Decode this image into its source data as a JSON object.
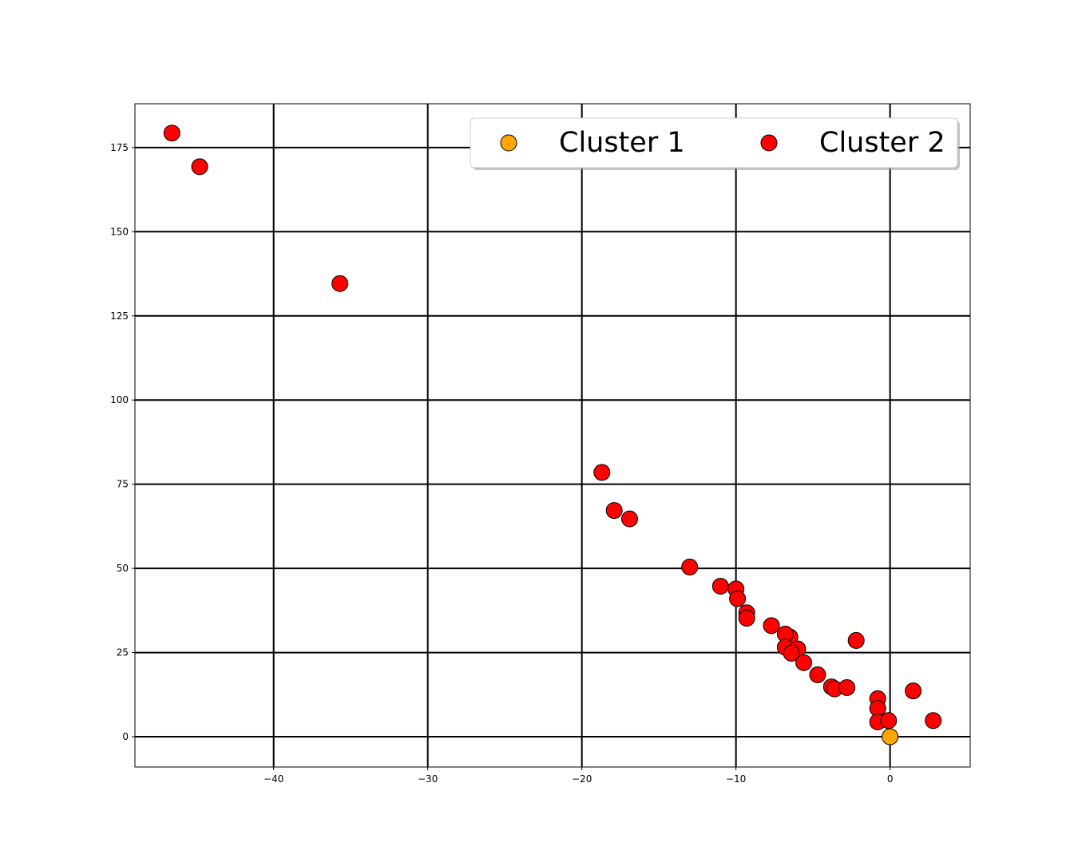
{
  "chart_data": {
    "type": "scatter",
    "title": "",
    "xlabel": "",
    "ylabel": "",
    "xlim": [
      -49,
      5.2
    ],
    "ylim": [
      -9,
      188
    ],
    "x_ticks": [
      -40,
      -30,
      -20,
      -10,
      0
    ],
    "y_ticks": [
      0,
      25,
      50,
      75,
      100,
      125,
      150,
      175
    ],
    "grid": true,
    "legend_position": "top-right",
    "series": [
      {
        "name": "Cluster 1",
        "color": "#FFA500",
        "points": [
          [
            0.0,
            0.0
          ]
        ]
      },
      {
        "name": "Cluster 2",
        "color": "#FF0000",
        "points": [
          [
            -46.6,
            179.3
          ],
          [
            -44.8,
            169.3
          ],
          [
            -35.7,
            134.6
          ],
          [
            -18.7,
            78.5
          ],
          [
            -17.9,
            67.2
          ],
          [
            -16.9,
            64.7
          ],
          [
            -13.0,
            50.4
          ],
          [
            -11.0,
            44.7
          ],
          [
            -10.0,
            43.9
          ],
          [
            -9.9,
            41.0
          ],
          [
            -9.3,
            36.8
          ],
          [
            -9.3,
            35.2
          ],
          [
            -7.7,
            33.0
          ],
          [
            -6.5,
            29.6
          ],
          [
            -6.8,
            30.5
          ],
          [
            -6.8,
            26.6
          ],
          [
            -6.0,
            26.1
          ],
          [
            -6.4,
            24.8
          ],
          [
            -5.6,
            22.0
          ],
          [
            -4.7,
            18.4
          ],
          [
            -3.8,
            14.8
          ],
          [
            -3.6,
            14.2
          ],
          [
            -2.8,
            14.6
          ],
          [
            -2.2,
            28.6
          ],
          [
            -0.8,
            11.3
          ],
          [
            -0.8,
            8.4
          ],
          [
            -0.8,
            4.4
          ],
          [
            -0.1,
            4.8
          ],
          [
            1.5,
            13.6
          ],
          [
            2.8,
            4.8
          ]
        ]
      }
    ]
  }
}
